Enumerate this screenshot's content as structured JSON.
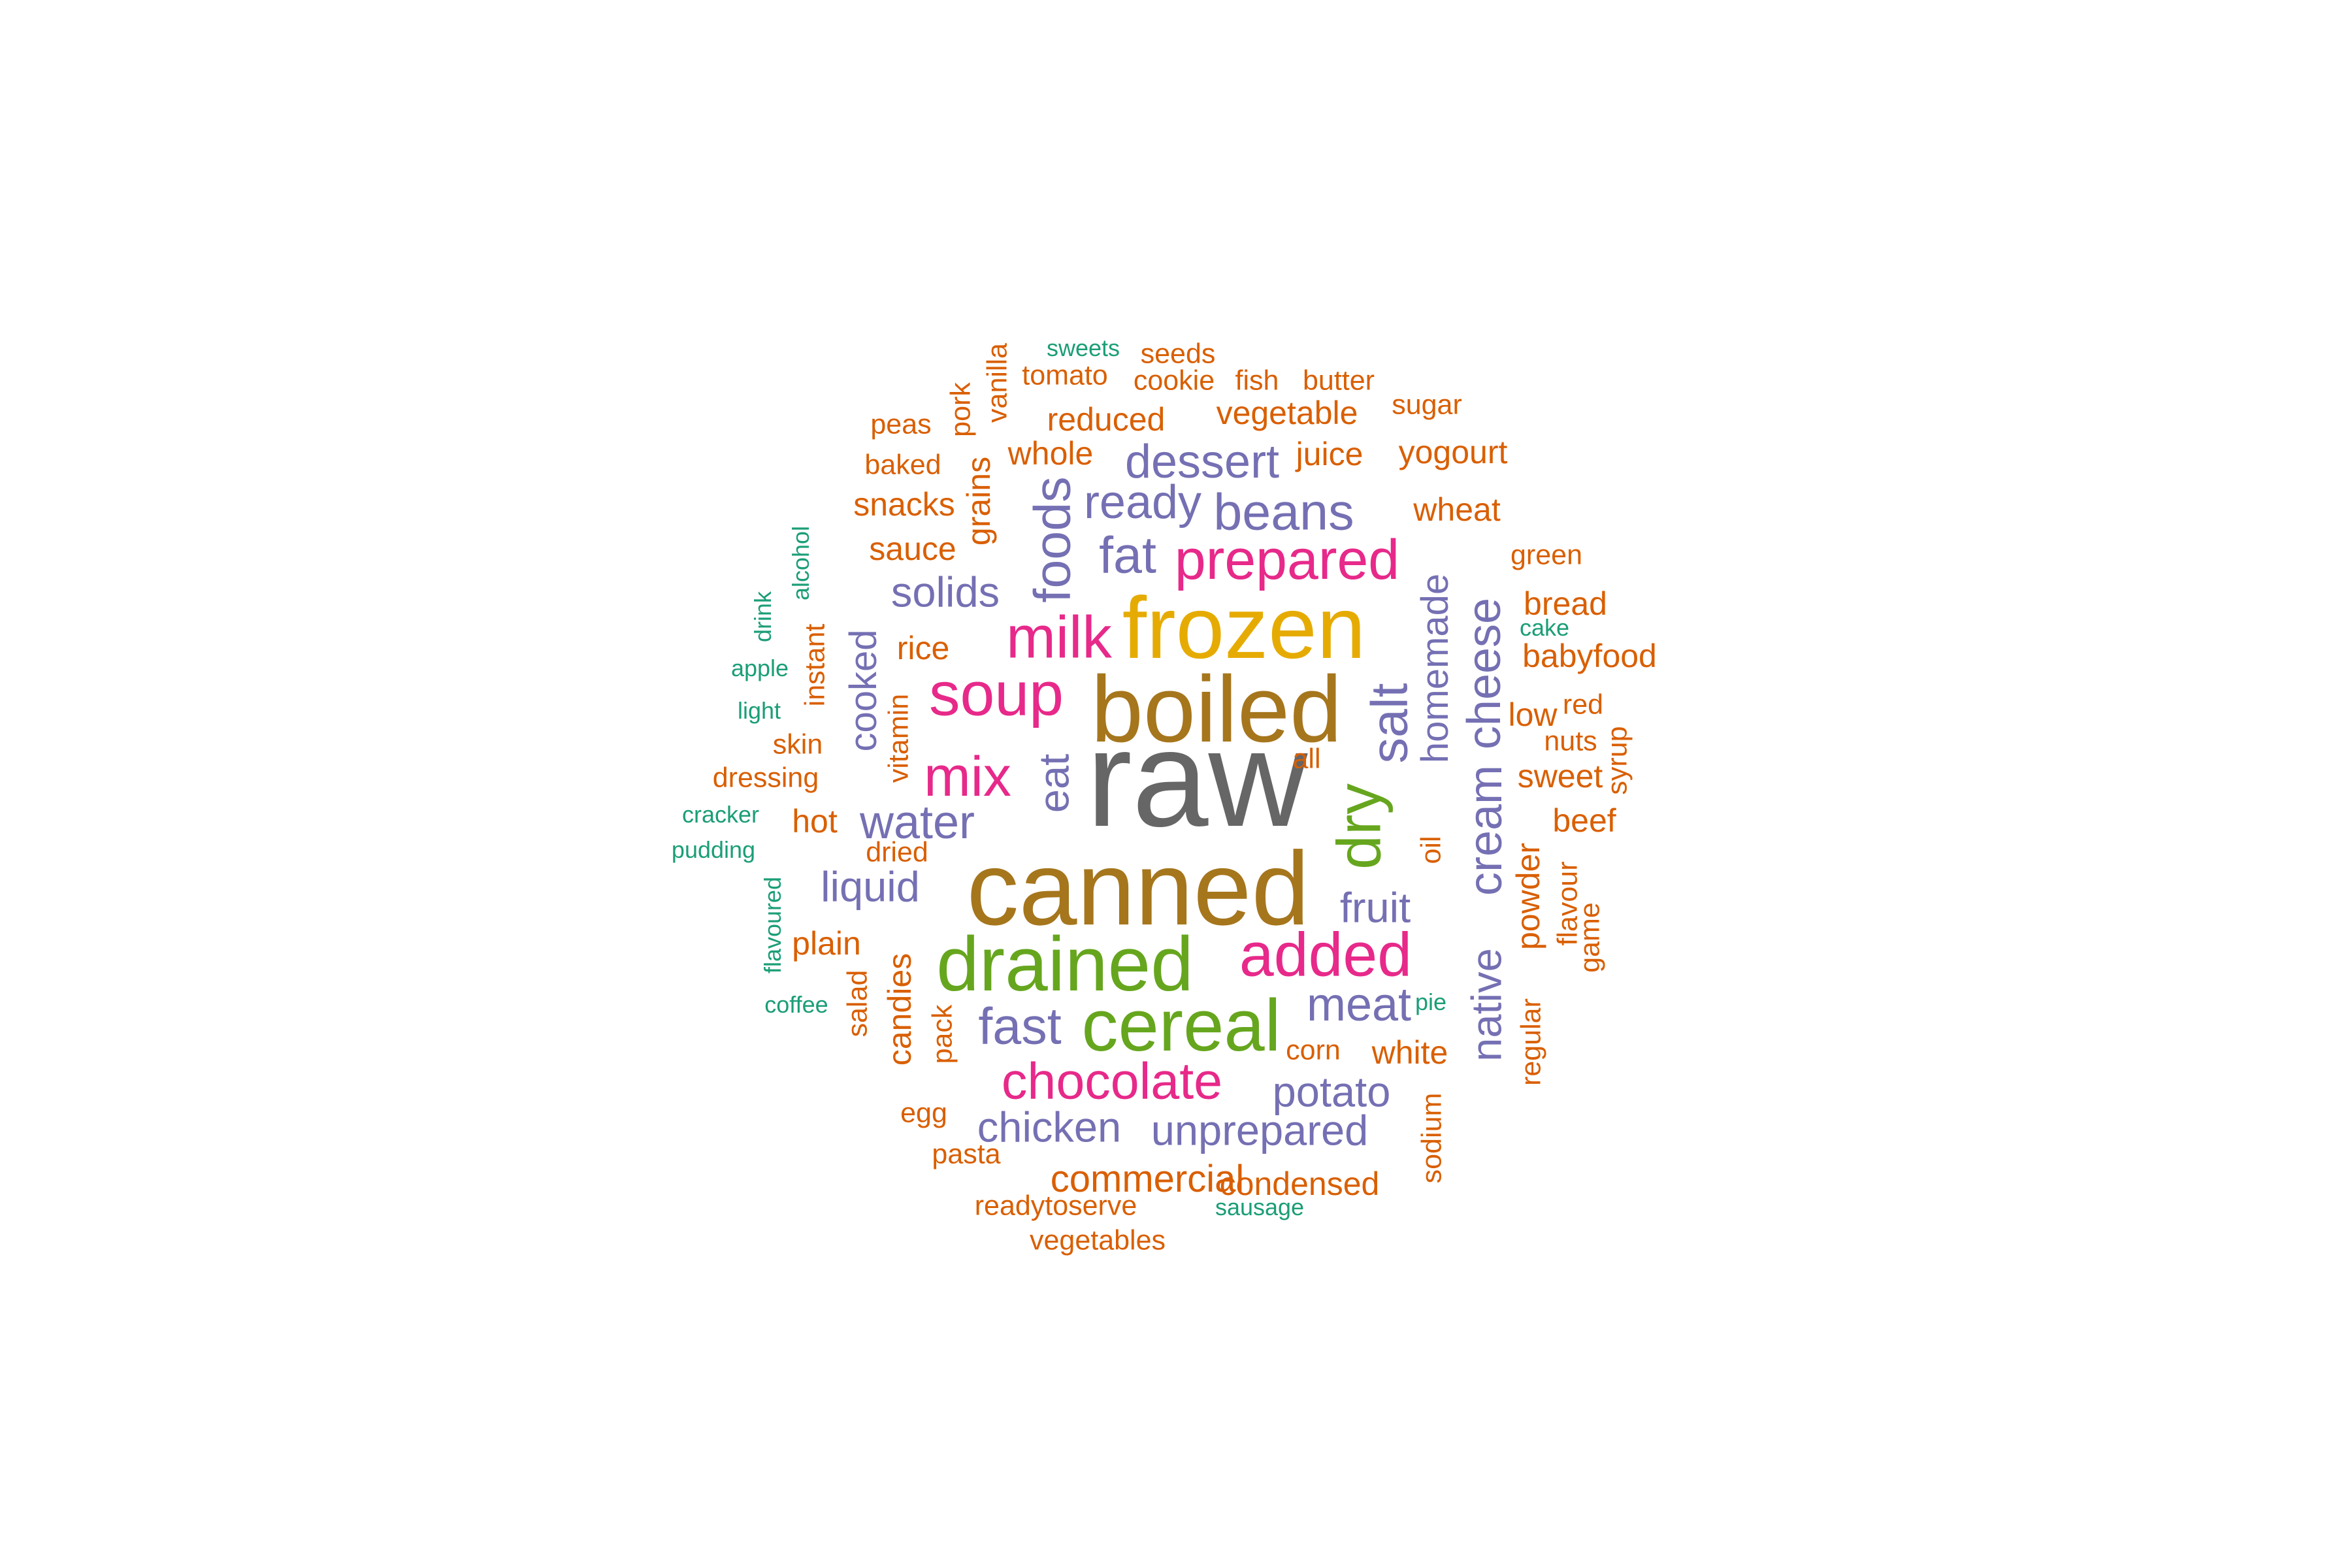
{
  "colors": {
    "c1": "#d95f02",
    "c2": "#1b9e77",
    "c3": "#7570b3",
    "c4": "#e7298a",
    "c5": "#66a61e",
    "c6": "#e6ab02",
    "c7": "#a6761d",
    "c8": "#666666"
  },
  "words": [
    {
      "text": "raw",
      "weight": 10,
      "color": "c8"
    },
    {
      "text": "canned",
      "weight": 9,
      "color": "c7"
    },
    {
      "text": "boiled",
      "weight": 8,
      "color": "c7"
    },
    {
      "text": "frozen",
      "weight": 8,
      "color": "c6"
    },
    {
      "text": "drained",
      "weight": 7,
      "color": "c5"
    },
    {
      "text": "cereal",
      "weight": 7,
      "color": "c5"
    },
    {
      "text": "added",
      "weight": 6,
      "color": "c4"
    },
    {
      "text": "dry",
      "weight": 6,
      "color": "c5"
    },
    {
      "text": "soup",
      "weight": 6,
      "color": "c4"
    },
    {
      "text": "milk",
      "weight": 6,
      "color": "c4"
    },
    {
      "text": "prepared",
      "weight": 5,
      "color": "c4"
    },
    {
      "text": "chocolate",
      "weight": 5,
      "color": "c4"
    },
    {
      "text": "mix",
      "weight": 5,
      "color": "c4"
    },
    {
      "text": "foods",
      "weight": 5,
      "color": "c3"
    },
    {
      "text": "cream",
      "weight": 5,
      "color": "c3"
    },
    {
      "text": "cheese",
      "weight": 5,
      "color": "c3"
    },
    {
      "text": "salt",
      "weight": 5,
      "color": "c3"
    },
    {
      "text": "fat",
      "weight": 5,
      "color": "c3"
    },
    {
      "text": "fast",
      "weight": 5,
      "color": "c3"
    },
    {
      "text": "meat",
      "weight": 5,
      "color": "c3"
    },
    {
      "text": "beans",
      "weight": 4,
      "color": "c3"
    },
    {
      "text": "ready",
      "weight": 4,
      "color": "c3"
    },
    {
      "text": "dessert",
      "weight": 4,
      "color": "c3"
    },
    {
      "text": "native",
      "weight": 4,
      "color": "c3"
    },
    {
      "text": "homemade",
      "weight": 4,
      "color": "c3"
    },
    {
      "text": "water",
      "weight": 4,
      "color": "c3"
    },
    {
      "text": "eat",
      "weight": 4,
      "color": "c3"
    },
    {
      "text": "cooked",
      "weight": 4,
      "color": "c3"
    },
    {
      "text": "solids",
      "weight": 4,
      "color": "c3"
    },
    {
      "text": "liquid",
      "weight": 4,
      "color": "c3"
    },
    {
      "text": "fruit",
      "weight": 4,
      "color": "c3"
    },
    {
      "text": "potato",
      "weight": 4,
      "color": "c3"
    },
    {
      "text": "chicken",
      "weight": 4,
      "color": "c3"
    },
    {
      "text": "unprepared",
      "weight": 4,
      "color": "c3"
    },
    {
      "text": "commercial",
      "weight": 3,
      "color": "c1"
    },
    {
      "text": "condensed",
      "weight": 3,
      "color": "c1"
    },
    {
      "text": "powder",
      "weight": 3,
      "color": "c1"
    },
    {
      "text": "candies",
      "weight": 3,
      "color": "c1"
    },
    {
      "text": "sweet",
      "weight": 3,
      "color": "c1"
    },
    {
      "text": "low",
      "weight": 3,
      "color": "c1"
    },
    {
      "text": "beef",
      "weight": 3,
      "color": "c1"
    },
    {
      "text": "bread",
      "weight": 3,
      "color": "c1"
    },
    {
      "text": "babyfood",
      "weight": 3,
      "color": "c1"
    },
    {
      "text": "white",
      "weight": 3,
      "color": "c1"
    },
    {
      "text": "rice",
      "weight": 3,
      "color": "c1"
    },
    {
      "text": "sauce",
      "weight": 3,
      "color": "c1"
    },
    {
      "text": "snacks",
      "weight": 3,
      "color": "c1"
    },
    {
      "text": "grains",
      "weight": 3,
      "color": "c1"
    },
    {
      "text": "whole",
      "weight": 3,
      "color": "c1"
    },
    {
      "text": "reduced",
      "weight": 3,
      "color": "c1"
    },
    {
      "text": "vegetable",
      "weight": 3,
      "color": "c1"
    },
    {
      "text": "juice",
      "weight": 3,
      "color": "c1"
    },
    {
      "text": "yogourt",
      "weight": 3,
      "color": "c1"
    },
    {
      "text": "wheat",
      "weight": 3,
      "color": "c1"
    },
    {
      "text": "plain",
      "weight": 3,
      "color": "c1"
    },
    {
      "text": "hot",
      "weight": 3,
      "color": "c1"
    },
    {
      "text": "skin",
      "weight": 3,
      "color": "c1"
    },
    {
      "text": "instant",
      "weight": 3,
      "color": "c1"
    },
    {
      "text": "regular",
      "weight": 2,
      "color": "c1"
    },
    {
      "text": "flavour",
      "weight": 2,
      "color": "c1"
    },
    {
      "text": "game",
      "weight": 2,
      "color": "c1"
    },
    {
      "text": "syrup",
      "weight": 2,
      "color": "c1"
    },
    {
      "text": "nuts",
      "weight": 2,
      "color": "c1"
    },
    {
      "text": "red",
      "weight": 2,
      "color": "c1"
    },
    {
      "text": "green",
      "weight": 2,
      "color": "c1"
    },
    {
      "text": "sugar",
      "weight": 2,
      "color": "c1"
    },
    {
      "text": "butter",
      "weight": 2,
      "color": "c1"
    },
    {
      "text": "fish",
      "weight": 2,
      "color": "c1"
    },
    {
      "text": "cookie",
      "weight": 2,
      "color": "c1"
    },
    {
      "text": "seeds",
      "weight": 2,
      "color": "c1"
    },
    {
      "text": "tomato",
      "weight": 2,
      "color": "c1"
    },
    {
      "text": "vanilla",
      "weight": 2,
      "color": "c1"
    },
    {
      "text": "pork",
      "weight": 2,
      "color": "c1"
    },
    {
      "text": "peas",
      "weight": 2,
      "color": "c1"
    },
    {
      "text": "baked",
      "weight": 2,
      "color": "c1"
    },
    {
      "text": "dressing",
      "weight": 2,
      "color": "c1"
    },
    {
      "text": "dried",
      "weight": 2,
      "color": "c1"
    },
    {
      "text": "vitamin",
      "weight": 2,
      "color": "c1"
    },
    {
      "text": "all",
      "weight": 2,
      "color": "c1"
    },
    {
      "text": "oil",
      "weight": 2,
      "color": "c1"
    },
    {
      "text": "salad",
      "weight": 2,
      "color": "c1"
    },
    {
      "text": "pack",
      "weight": 2,
      "color": "c1"
    },
    {
      "text": "corn",
      "weight": 2,
      "color": "c1"
    },
    {
      "text": "egg",
      "weight": 2,
      "color": "c1"
    },
    {
      "text": "pasta",
      "weight": 2,
      "color": "c1"
    },
    {
      "text": "readytoserve",
      "weight": 2,
      "color": "c1"
    },
    {
      "text": "vegetables",
      "weight": 2,
      "color": "c1"
    },
    {
      "text": "sodium",
      "weight": 2,
      "color": "c1"
    },
    {
      "text": "sweets",
      "weight": 1,
      "color": "c2"
    },
    {
      "text": "alcohol",
      "weight": 1,
      "color": "c2"
    },
    {
      "text": "drink",
      "weight": 1,
      "color": "c2"
    },
    {
      "text": "apple",
      "weight": 1,
      "color": "c2"
    },
    {
      "text": "light",
      "weight": 1,
      "color": "c2"
    },
    {
      "text": "cracker",
      "weight": 1,
      "color": "c2"
    },
    {
      "text": "pudding",
      "weight": 1,
      "color": "c2"
    },
    {
      "text": "flavoured",
      "weight": 1,
      "color": "c2"
    },
    {
      "text": "coffee",
      "weight": 1,
      "color": "c2"
    },
    {
      "text": "cake",
      "weight": 1,
      "color": "c2"
    },
    {
      "text": "pie",
      "weight": 1,
      "color": "c2"
    },
    {
      "text": "sausage",
      "weight": 1,
      "color": "c2"
    }
  ]
}
